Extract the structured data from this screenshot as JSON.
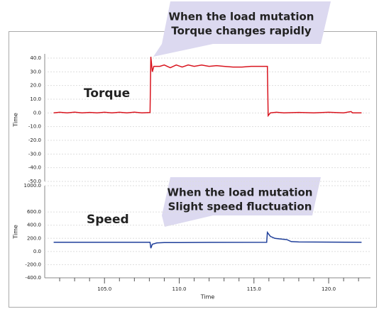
{
  "chart_data": [
    {
      "type": "line",
      "ylabel": "Time",
      "color": "#d9141e",
      "grid": true,
      "annotation": "Torque",
      "callout": [
        "When the load mutation",
        "Torque changes rapidly"
      ],
      "xlim": [
        101,
        122.8
      ],
      "ylim": [
        -50,
        40
      ],
      "yticks": [
        {
          "value": 40,
          "label": "40.0"
        },
        {
          "value": 30,
          "label": "30.0"
        },
        {
          "value": 20,
          "label": "20.0"
        },
        {
          "value": 10,
          "label": "10.0"
        },
        {
          "value": 0,
          "label": "0.0"
        },
        {
          "value": -10,
          "label": "-10.0"
        },
        {
          "value": -20,
          "label": "-20.0"
        },
        {
          "value": -30,
          "label": "-30.0"
        },
        {
          "value": -40,
          "label": "-40.0"
        },
        {
          "value": -50,
          "label": "-50.0"
        }
      ],
      "x": [
        101.6,
        102,
        102.5,
        103,
        103.5,
        104,
        104.5,
        105,
        105.5,
        106,
        106.5,
        107,
        107.5,
        108.05,
        108.1,
        108.2,
        108.3,
        108.7,
        109,
        109.4,
        109.8,
        110.2,
        110.6,
        111,
        111.5,
        112,
        112.5,
        113,
        113.6,
        114.2,
        114.8,
        115.9,
        115.95,
        116.1,
        116.5,
        117,
        118,
        119,
        120,
        121,
        121.5,
        121.6,
        122.2
      ],
      "values": [
        0,
        0.5,
        0,
        0.6,
        0,
        0.4,
        0,
        0.5,
        0,
        0.5,
        0,
        0.6,
        0,
        0.3,
        41,
        30,
        34,
        34,
        35,
        33,
        35,
        33.5,
        35,
        34,
        35,
        34,
        34.5,
        34,
        33.5,
        33.5,
        34,
        34,
        -2,
        0,
        0.5,
        0,
        0.4,
        0,
        0.5,
        0,
        1,
        0,
        0
      ]
    },
    {
      "type": "line",
      "ylabel": "Time",
      "xlabel": "Time",
      "color": "#1f3f9a",
      "grid": true,
      "annotation": "Speed",
      "callout": [
        "When the load mutation",
        "Slight speed fluctuation"
      ],
      "xlim": [
        101,
        122.8
      ],
      "ylim": [
        -400,
        1000
      ],
      "xticks": [
        {
          "value": 105,
          "label": "105.0"
        },
        {
          "value": 110,
          "label": "110.0"
        },
        {
          "value": 115,
          "label": "115.0"
        },
        {
          "value": 120,
          "label": "120.0"
        }
      ],
      "xminorticks": [
        102,
        103,
        104,
        106,
        107,
        108,
        109,
        111,
        112,
        113,
        114,
        116,
        117,
        118,
        119,
        121,
        122
      ],
      "yticks": [
        {
          "value": 1000,
          "label": "1000.0"
        },
        {
          "value": 600,
          "label": "600.0"
        },
        {
          "value": 400,
          "label": "400.0"
        },
        {
          "value": 200,
          "label": "200.0"
        },
        {
          "value": 0,
          "label": "0.0"
        },
        {
          "value": -200,
          "label": "-200.0"
        },
        {
          "value": -400,
          "label": "-400.0"
        }
      ],
      "x": [
        101.6,
        108.05,
        108.1,
        108.2,
        108.5,
        109,
        112,
        115.85,
        115.9,
        116.1,
        116.4,
        116.8,
        117.2,
        117.5,
        118,
        122.2
      ],
      "values": [
        140,
        140,
        50,
        110,
        130,
        135,
        138,
        140,
        290,
        230,
        200,
        190,
        180,
        150,
        145,
        140
      ]
    }
  ]
}
